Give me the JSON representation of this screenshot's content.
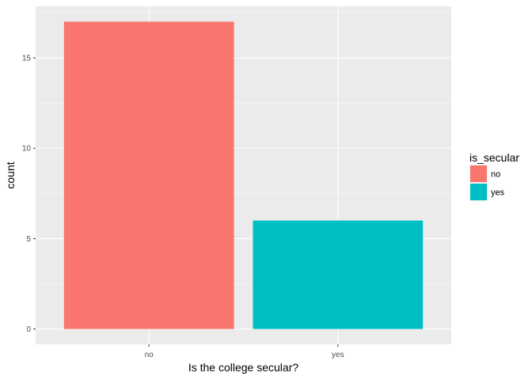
{
  "chart_data": {
    "type": "bar",
    "categories": [
      "no",
      "yes"
    ],
    "values": [
      17,
      6
    ],
    "colors": [
      "#F8766D",
      "#00BFC4"
    ],
    "xlabel": "Is the college secular?",
    "ylabel": "count",
    "ylim": [
      -0.85,
      17.85
    ],
    "yticks": [
      0,
      5,
      10,
      15
    ],
    "grid": true,
    "legend": {
      "title": "is_secular",
      "position": "right",
      "entries": [
        "no",
        "yes"
      ]
    }
  }
}
